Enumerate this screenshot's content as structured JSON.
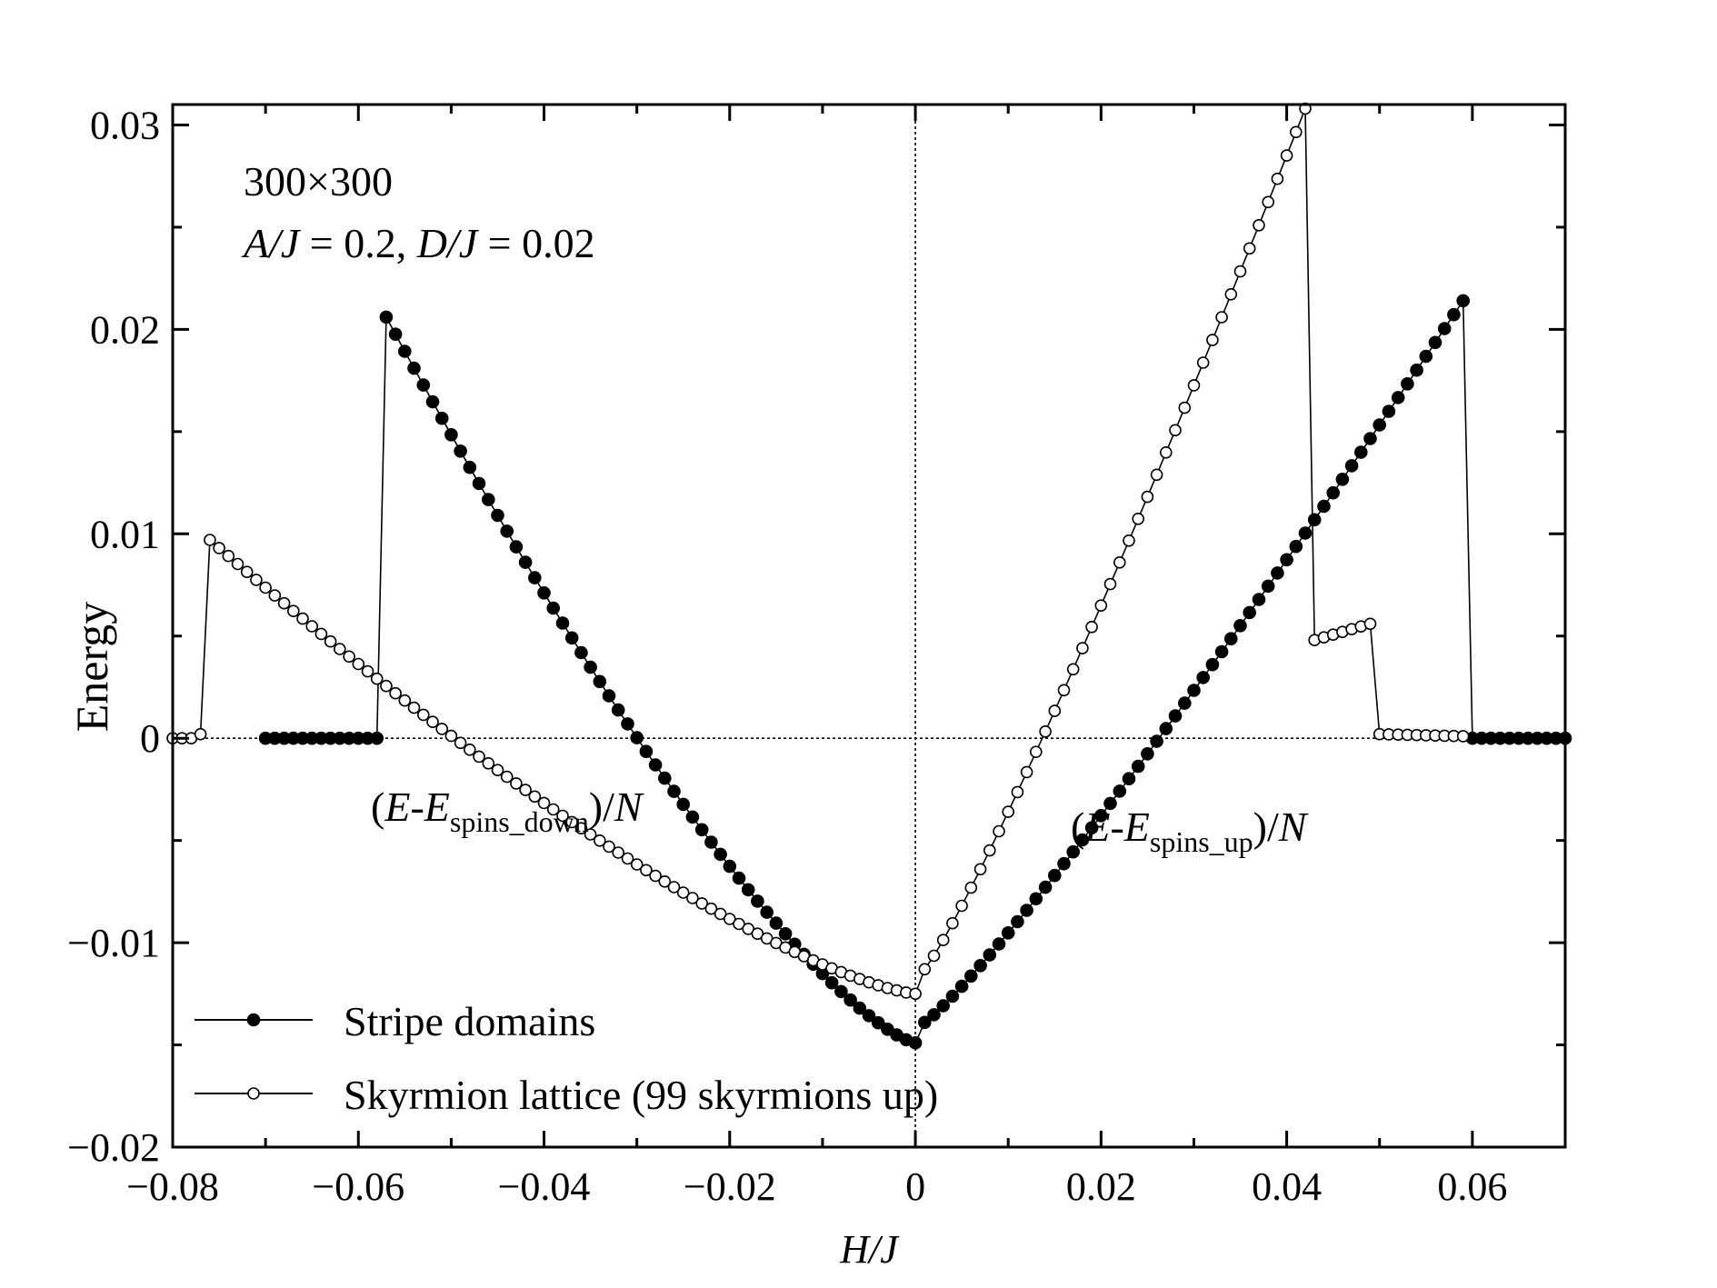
{
  "chart_data": {
    "type": "line",
    "xlabel": "H/J",
    "ylabel": "Energy",
    "xlim": [
      -0.08,
      0.07
    ],
    "ylim": [
      -0.02,
      0.031
    ],
    "x_ticks": [
      -0.08,
      -0.06,
      -0.04,
      -0.02,
      0,
      0.02,
      0.04,
      0.06
    ],
    "x_tick_labels": [
      "−0.08",
      "−0.06",
      "−0.04",
      "−0.02",
      "0",
      "0.02",
      "0.04",
      "0.06"
    ],
    "y_ticks": [
      -0.02,
      -0.01,
      0,
      0.01,
      0.02,
      0.03
    ],
    "y_tick_labels": [
      "−0.02",
      "−0.01",
      "0",
      "0.01",
      "0.02",
      "0.03"
    ],
    "annotations": {
      "size": "300×300",
      "params": {
        "a": "A/J",
        "a_val": " = 0.2, ",
        "d": "D/J",
        "d_val": " = 0.02"
      },
      "left_label": {
        "pre": "(",
        "e1": "E",
        "dash": "-",
        "e2": "E",
        "sub": "spins_down",
        "post": ")/",
        "n": "N"
      },
      "right_label": {
        "pre": "(",
        "e1": "E",
        "dash": "-",
        "e2": "E",
        "sub": "spins_up",
        "post": ")/",
        "n": "N"
      }
    },
    "legend_position": "bottom-left",
    "series": [
      {
        "name": "Stripe domains",
        "marker": "filled-circle",
        "segments": [
          {
            "x_start": -0.07,
            "x_end": -0.058,
            "step": 0.001,
            "shape": "flat",
            "y_start": 0,
            "y_end": 0
          },
          {
            "x_start": -0.057,
            "x_end": 0.0,
            "step": 0.001,
            "shape": "convex",
            "y_start": 0.0206,
            "y_end": -0.0149
          },
          {
            "x_start": 0.001,
            "x_end": 0.059,
            "step": 0.001,
            "shape": "concave",
            "y_start": -0.0139,
            "y_end": 0.0214
          },
          {
            "x_start": 0.06,
            "x_end": 0.07,
            "step": 0.001,
            "shape": "flat",
            "y_start": 0,
            "y_end": 0
          }
        ]
      },
      {
        "name": "Skyrmion lattice (99 skyrmions up)",
        "marker": "open-circle",
        "segments": [
          {
            "x_start": -0.08,
            "x_end": -0.078,
            "step": 0.001,
            "shape": "flat",
            "y_start": 0,
            "y_end": 0
          },
          {
            "x_start": -0.077,
            "x_end": -0.077,
            "step": 0.001,
            "shape": "flat",
            "y_start": 0.0002,
            "y_end": 0.0002
          },
          {
            "x_start": -0.076,
            "x_end": 0.0,
            "step": 0.001,
            "shape": "convex",
            "y_start": 0.0097,
            "y_end": -0.0125
          },
          {
            "x_start": 0.001,
            "x_end": 0.042,
            "step": 0.001,
            "shape": "concave",
            "y_start": -0.0113,
            "y_end": 0.0308
          },
          {
            "x_start": 0.043,
            "x_end": 0.049,
            "step": 0.001,
            "shape": "linear",
            "y_start": 0.0048,
            "y_end": 0.0056
          },
          {
            "x_start": 0.05,
            "x_end": 0.059,
            "step": 0.001,
            "shape": "linear",
            "y_start": 0.0002,
            "y_end": 0.0001
          }
        ]
      }
    ]
  }
}
